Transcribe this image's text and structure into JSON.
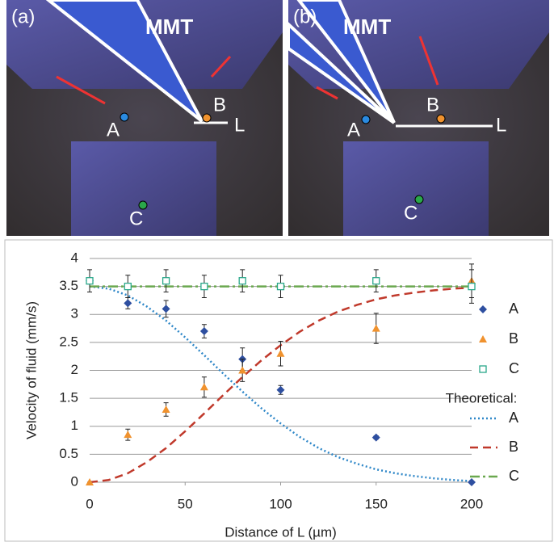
{
  "panels": [
    {
      "tag": "(a)",
      "tool": "MMT",
      "points": [
        "A",
        "B",
        "C"
      ],
      "length": "L"
    },
    {
      "tag": "(b)",
      "tool": "MMT",
      "points": [
        "A",
        "B",
        "C"
      ],
      "length": "L"
    }
  ],
  "chart_data": {
    "type": "scatter",
    "x_label": "Distance of L (µm)",
    "y_label": "Velocity of fluid (mm/s)",
    "xlim": [
      0,
      200
    ],
    "xticks": [
      0,
      50,
      100,
      150,
      200
    ],
    "ylim": [
      0,
      4
    ],
    "yticks": [
      0,
      0.5,
      1,
      1.5,
      2,
      2.5,
      3,
      3.5,
      4
    ],
    "grid": true,
    "x": [
      0,
      20,
      40,
      60,
      80,
      100,
      150,
      200
    ],
    "series": [
      {
        "name": "A",
        "color": "#2e4fa0",
        "marker": "diamond",
        "values": [
          3.6,
          3.2,
          3.1,
          2.7,
          2.2,
          1.65,
          0.8,
          0
        ],
        "errors": [
          0.05,
          0.1,
          0.15,
          0.12,
          0.2,
          0.08,
          0.03,
          0
        ]
      },
      {
        "name": "B",
        "color": "#f0922e",
        "marker": "triangle",
        "values": [
          0,
          0.85,
          1.3,
          1.7,
          2.0,
          2.3,
          2.75,
          3.6
        ],
        "errors": [
          0,
          0.1,
          0.12,
          0.18,
          0.2,
          0.22,
          0.27,
          0.3
        ]
      },
      {
        "name": "C",
        "color": "#2aa88a",
        "marker": "square",
        "values": [
          3.6,
          3.5,
          3.6,
          3.5,
          3.6,
          3.5,
          3.6,
          3.5
        ],
        "errors": [
          0.2,
          0.2,
          0.2,
          0.2,
          0.2,
          0.2,
          0.2,
          0.3
        ]
      }
    ],
    "theory_heading": "Theoretical:",
    "theory_x": [
      0,
      10,
      20,
      30,
      40,
      50,
      60,
      70,
      80,
      90,
      100,
      110,
      120,
      130,
      140,
      150,
      160,
      170,
      180,
      190,
      200
    ],
    "theory": [
      {
        "name": "A",
        "color": "#2e87c8",
        "dash": "2 3",
        "values": [
          3.5,
          3.46,
          3.34,
          3.14,
          2.89,
          2.59,
          2.27,
          1.94,
          1.62,
          1.32,
          1.05,
          0.81,
          0.61,
          0.45,
          0.33,
          0.23,
          0.16,
          0.11,
          0.07,
          0.04,
          0.02
        ]
      },
      {
        "name": "B",
        "color": "#c0392b",
        "dash": "10 6",
        "values": [
          0,
          0.04,
          0.16,
          0.36,
          0.61,
          0.91,
          1.23,
          1.56,
          1.88,
          2.18,
          2.45,
          2.69,
          2.89,
          3.05,
          3.17,
          3.27,
          3.34,
          3.39,
          3.43,
          3.46,
          3.48
        ]
      },
      {
        "name": "C",
        "color": "#6aa84f",
        "dash": "12 4 3 4",
        "values": [
          3.5,
          3.5,
          3.5,
          3.5,
          3.5,
          3.5,
          3.5,
          3.5,
          3.5,
          3.5,
          3.5,
          3.5,
          3.5,
          3.5,
          3.5,
          3.5,
          3.5,
          3.5,
          3.5,
          3.5,
          3.5
        ]
      }
    ]
  }
}
